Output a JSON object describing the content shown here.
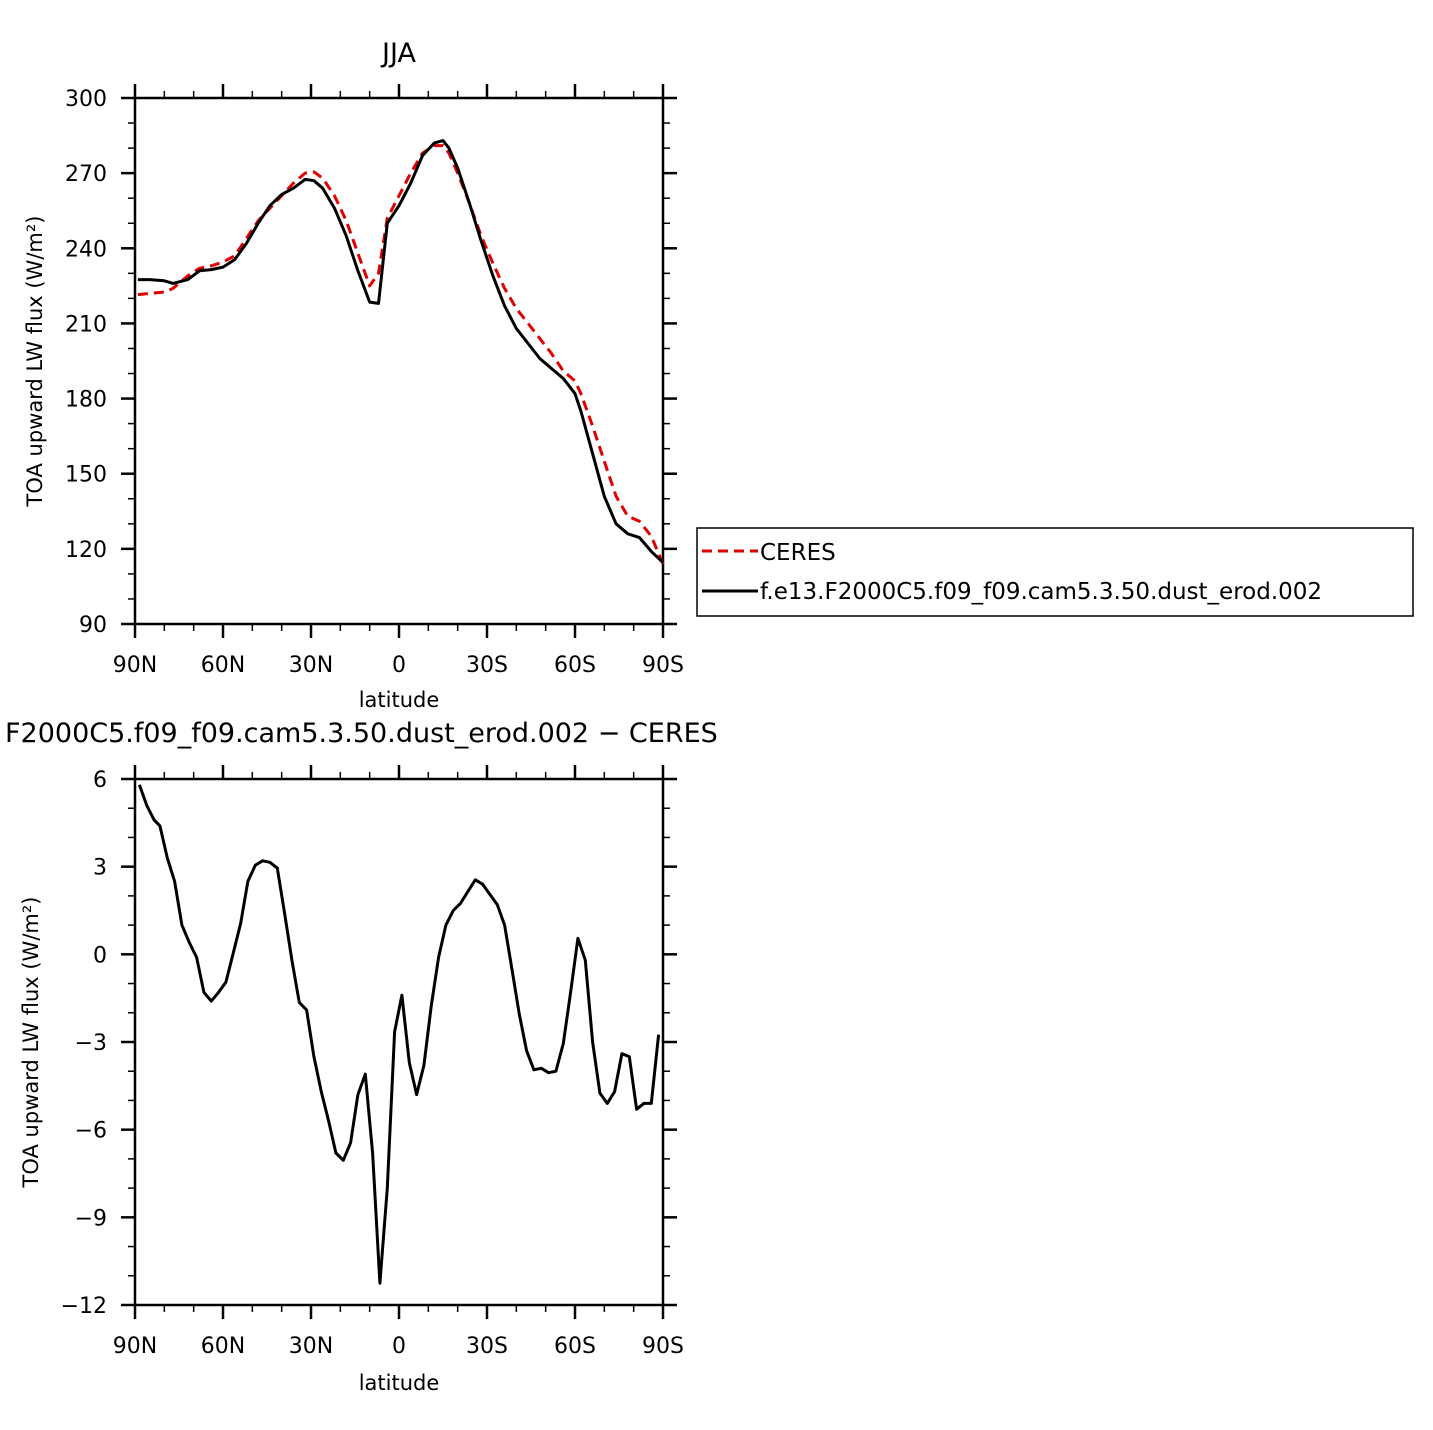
{
  "chart_data": [
    {
      "type": "line",
      "title": "JJA",
      "xlabel": "latitude",
      "ylabel": "TOA upward LW flux (W/m²)",
      "xlim": [
        90,
        -90
      ],
      "ylim": [
        90,
        300
      ],
      "xticks": [
        90,
        60,
        30,
        0,
        -30,
        -60,
        -90
      ],
      "xtick_labels": [
        "90N",
        "60N",
        "30N",
        "0",
        "30S",
        "60S",
        "90S"
      ],
      "yticks": [
        90,
        120,
        150,
        180,
        210,
        240,
        270,
        300
      ],
      "yminor_step": 10,
      "xminor_step": 10,
      "legend": {
        "placement": "right",
        "entries": [
          "CERES",
          "f.e13.F2000C5.f09_f09.cam5.3.50.dust_erod.002"
        ]
      },
      "x": [
        89,
        85,
        80,
        77,
        72,
        68,
        64,
        60,
        56,
        52,
        48,
        44,
        40,
        36,
        32,
        29,
        26,
        22,
        18,
        14,
        10,
        7,
        4,
        0,
        -4,
        -8,
        -12,
        -15,
        -17,
        -20,
        -24,
        -28,
        -32,
        -36,
        -40,
        -44,
        -48,
        -52,
        -56,
        -60,
        -62,
        -66,
        -70,
        -74,
        -78,
        -82,
        -86,
        -90
      ],
      "series": [
        {
          "name": "CERES",
          "color": "#e00000",
          "dash": true,
          "values": [
            221.5,
            222,
            222.5,
            224,
            229,
            232,
            233,
            234.5,
            237,
            244,
            251,
            256,
            261,
            266,
            270,
            270.5,
            268,
            261,
            251,
            238,
            225,
            230,
            252,
            261,
            270,
            278,
            281,
            281,
            278,
            270,
            258,
            245,
            234,
            224,
            216,
            210,
            204,
            198,
            191,
            187,
            182,
            169,
            155,
            141,
            133,
            131,
            125,
            114
          ]
        },
        {
          "name": "f.e13.F2000C5.f09_f09.cam5.3.50.dust_erod.002",
          "color": "#000000",
          "dash": false,
          "values": [
            227.5,
            227.5,
            227,
            226,
            227.5,
            231,
            231.5,
            232.5,
            235.5,
            242,
            250,
            257,
            261.5,
            264,
            267.5,
            267,
            264,
            256,
            245,
            231,
            218.5,
            218,
            250,
            257,
            266,
            277,
            282,
            283,
            280,
            272,
            258,
            243,
            229,
            217,
            208,
            202,
            196,
            192,
            188,
            182,
            175,
            158,
            141,
            130,
            126,
            124.5,
            119,
            114.5
          ]
        }
      ]
    },
    {
      "type": "line",
      "title": "F2000C5.f09_f09.cam5.3.50.dust_erod.002 − CERES",
      "xlabel": "latitude",
      "ylabel": "TOA upward LW flux (W/m²)",
      "xlim": [
        90,
        -90
      ],
      "ylim": [
        -12,
        6
      ],
      "xticks": [
        90,
        60,
        30,
        0,
        -30,
        -60,
        -90
      ],
      "xtick_labels": [
        "90N",
        "60N",
        "30N",
        "0",
        "30S",
        "60S",
        "90S"
      ],
      "yticks": [
        -12,
        -9,
        -6,
        -3,
        0,
        3,
        6
      ],
      "ytick_labels": [
        "−12",
        "−9",
        "−6",
        "−3",
        "0",
        "3",
        "6"
      ],
      "yminor_step": 1,
      "xminor_step": 10,
      "x": [
        88.5,
        86,
        83.5,
        81.5,
        79,
        76.5,
        74,
        71.5,
        69,
        66.5,
        64,
        61.5,
        59,
        56.5,
        54,
        51.5,
        49,
        46.5,
        44,
        41.5,
        39,
        36.5,
        34,
        31.5,
        29,
        26.5,
        24,
        21.5,
        19,
        16.5,
        14,
        11.5,
        9,
        6.5,
        4,
        1.5,
        -1,
        -3.5,
        -6,
        -8.5,
        -11,
        -13.5,
        -16,
        -18.5,
        -21,
        -23.5,
        -26,
        -28.5,
        -31,
        -33.5,
        -36,
        -38.5,
        -41,
        -43.5,
        -46,
        -48.5,
        -51,
        -53.5,
        -56,
        -58.5,
        -61,
        -63.5,
        -66,
        -68.5,
        -71,
        -73.5,
        -76,
        -78.5,
        -81,
        -83.5,
        -86,
        -88.5
      ],
      "series": [
        {
          "name": "",
          "color": "#000000",
          "dash": false,
          "values": [
            5.8,
            5.1,
            4.6,
            4.4,
            3.3,
            2.5,
            1.0,
            0.4,
            -0.1,
            -1.3,
            -1.6,
            -1.3,
            -0.95,
            0.05,
            1.05,
            2.5,
            3.05,
            3.2,
            3.15,
            2.95,
            1.4,
            -0.2,
            -1.65,
            -1.9,
            -3.5,
            -4.7,
            -5.7,
            -6.8,
            -7.05,
            -6.45,
            -4.8,
            -4.1,
            -6.8,
            -11.25,
            -8.0,
            -2.65,
            -1.4,
            -3.7,
            -4.8,
            -3.8,
            -1.75,
            -0.1,
            1.0,
            1.5,
            1.75,
            2.15,
            2.55,
            2.4,
            2.05,
            1.7,
            1.0,
            -0.5,
            -2.05,
            -3.3,
            -3.95,
            -3.9,
            -4.05,
            -4.0,
            -3.05,
            -1.3,
            0.55,
            -0.2,
            -3.0,
            -4.75,
            -5.1,
            -4.7,
            -3.4,
            -3.5,
            -5.3,
            -5.1,
            -5.1,
            -2.75
          ]
        }
      ]
    }
  ]
}
